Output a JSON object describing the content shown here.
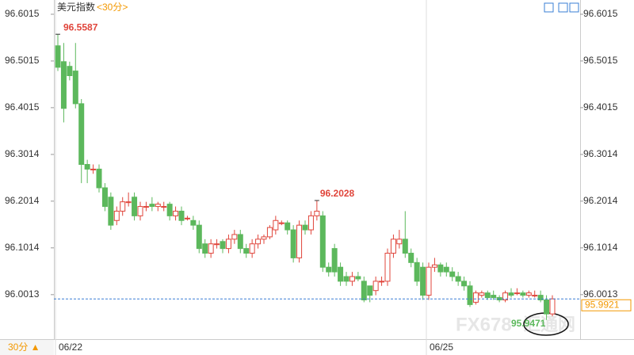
{
  "chart_data": {
    "type": "candlestick",
    "title": "美元指数",
    "period": "<30分>",
    "period_button": "30分 ▲",
    "watermark": [
      "FX678",
      "汇通网"
    ],
    "categories": [
      "06/22",
      null,
      null,
      null,
      null,
      null,
      null,
      null,
      null,
      null,
      null,
      null,
      null,
      null,
      null,
      null,
      null,
      null,
      null,
      null,
      null,
      null,
      null,
      null,
      null,
      null,
      null,
      null,
      null,
      null,
      null,
      null,
      null,
      null,
      null,
      null,
      null,
      null,
      null,
      null,
      null,
      null,
      null,
      null,
      null,
      null,
      null,
      null,
      null,
      null,
      null,
      null,
      null,
      null,
      null,
      null,
      null,
      null,
      null,
      null,
      null,
      null,
      null,
      "06/25",
      null,
      null,
      null,
      null,
      null,
      null,
      null,
      null,
      null,
      null,
      null,
      null,
      null,
      null,
      null,
      null,
      null,
      null,
      null,
      null,
      null
    ],
    "open": [
      96.534,
      96.5,
      96.49,
      96.48,
      96.41,
      96.28,
      96.27,
      96.27,
      96.23,
      96.21,
      96.16,
      96.18,
      96.2,
      96.21,
      96.17,
      96.19,
      96.195,
      96.19,
      96.19,
      96.195,
      96.17,
      96.18,
      96.165,
      96.16,
      96.15,
      96.11,
      96.09,
      96.11,
      96.115,
      96.1,
      96.12,
      96.13,
      96.1,
      96.09,
      96.11,
      96.12,
      96.125,
      96.14,
      96.155,
      96.155,
      96.14,
      96.08,
      96.15,
      96.14,
      96.17,
      96.17,
      96.06,
      96.1,
      96.06,
      96.04,
      96.03,
      96.04,
      96.03,
      96.02,
      96.01,
      96.03,
      96.03,
      96.09,
      96.11,
      96.12,
      96.09,
      96.07,
      96.06,
      96.0,
      96.06,
      96.065,
      96.06,
      96.05,
      96.04,
      96.03,
      96.02,
      95.985,
      96.0,
      96.005,
      96.0,
      95.995,
      95.99,
      96.005,
      96.005,
      96.005,
      96.0,
      96.0,
      96.0,
      95.99,
      95.96
    ],
    "high": [
      96.5587,
      96.54,
      96.5,
      96.54,
      96.42,
      96.29,
      96.28,
      96.28,
      96.24,
      96.22,
      96.19,
      96.21,
      96.22,
      96.22,
      96.2,
      96.2,
      96.21,
      96.2,
      96.2,
      96.2,
      96.19,
      96.19,
      96.17,
      96.17,
      96.16,
      96.12,
      96.12,
      96.12,
      96.12,
      96.13,
      96.14,
      96.14,
      96.11,
      96.12,
      96.13,
      96.13,
      96.15,
      96.17,
      96.16,
      96.16,
      96.15,
      96.16,
      96.16,
      96.18,
      96.2028,
      96.18,
      96.07,
      96.11,
      96.07,
      96.05,
      96.05,
      96.05,
      96.04,
      96.02,
      96.04,
      96.04,
      96.1,
      96.13,
      96.14,
      96.18,
      96.1,
      96.08,
      96.07,
      96.07,
      96.08,
      96.07,
      96.07,
      96.06,
      96.05,
      96.04,
      96.03,
      96.01,
      96.01,
      96.01,
      96.01,
      96.0,
      96.01,
      96.015,
      96.015,
      96.01,
      96.01,
      96.01,
      96.01,
      96.0,
      96.0
    ],
    "low": [
      96.48,
      96.37,
      96.46,
      96.4,
      96.24,
      96.24,
      96.26,
      96.22,
      96.18,
      96.14,
      96.15,
      96.17,
      96.19,
      96.16,
      96.16,
      96.18,
      96.18,
      96.18,
      96.18,
      96.16,
      96.16,
      96.15,
      96.16,
      96.14,
      96.09,
      96.08,
      96.08,
      96.1,
      96.09,
      96.09,
      96.11,
      96.09,
      96.08,
      96.08,
      96.1,
      96.11,
      96.12,
      96.13,
      96.15,
      96.13,
      96.07,
      96.07,
      96.13,
      96.13,
      96.16,
      96.05,
      96.04,
      96.04,
      96.02,
      96.02,
      96.02,
      96.03,
      95.985,
      95.985,
      96.0,
      96.02,
      96.02,
      96.08,
      96.1,
      96.08,
      96.06,
      96.02,
      95.99,
      95.99,
      96.05,
      96.04,
      96.04,
      96.03,
      96.02,
      96.01,
      95.975,
      95.98,
      95.995,
      95.99,
      95.99,
      95.985,
      95.985,
      95.995,
      96.0,
      95.995,
      95.995,
      95.995,
      95.985,
      95.9471,
      95.955
    ],
    "close": [
      96.488,
      96.4,
      96.47,
      96.41,
      96.28,
      96.27,
      96.27,
      96.23,
      96.19,
      96.15,
      96.18,
      96.2,
      96.2,
      96.17,
      96.19,
      96.19,
      96.19,
      96.195,
      96.19,
      96.17,
      96.18,
      96.16,
      96.165,
      96.15,
      96.1,
      96.09,
      96.11,
      96.11,
      96.1,
      96.12,
      96.13,
      96.1,
      96.09,
      96.11,
      96.12,
      96.125,
      96.145,
      96.16,
      96.155,
      96.14,
      96.08,
      96.15,
      96.14,
      96.17,
      96.18,
      96.06,
      96.05,
      96.05,
      96.03,
      96.03,
      96.04,
      96.035,
      95.99,
      96.0,
      96.03,
      96.03,
      96.09,
      96.12,
      96.12,
      96.09,
      96.07,
      96.03,
      96.0,
      96.06,
      96.065,
      96.05,
      96.05,
      96.04,
      96.03,
      96.02,
      95.98,
      96.005,
      96.005,
      95.995,
      95.995,
      95.99,
      96.005,
      96.0,
      96.005,
      96.0,
      96.005,
      96.0,
      95.99,
      95.96,
      95.9921
    ],
    "up_color": "#e0453b",
    "down_color": "#5cb85c",
    "annotations": [
      96.5587,
      96.2028,
      95.9471
    ],
    "current_price": 95.9921,
    "current_color": "#3a7fd5",
    "ylim": [
      95.906,
      96.632
    ],
    "yticks": [
      96.6015,
      96.5015,
      96.4015,
      96.3014,
      96.2014,
      96.1014,
      96.0013
    ]
  }
}
